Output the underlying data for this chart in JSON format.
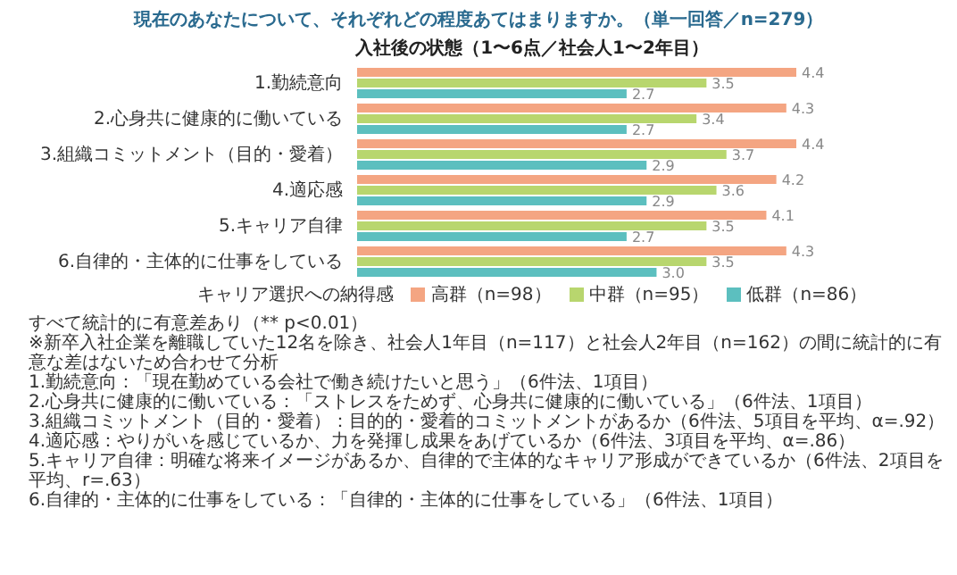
{
  "chart_data": {
    "type": "bar",
    "orientation": "horizontal",
    "title": "現在のあなたについて、それぞれどの程度あてはまりますか。（単一回答／n=279）",
    "subtitle": "入社後の状態（1〜6点／社会人1〜2年目）",
    "categories": [
      "1.勤続意向",
      "2.心身共に健康的に働いている",
      "3.組織コミットメント（目的・愛着）",
      "4.適応感",
      "5.キャリア自律",
      "6.自律的・主体的に仕事をしている"
    ],
    "series": [
      {
        "name": "高群（n=98）",
        "color": "#f4a582",
        "values": [
          4.4,
          4.3,
          4.4,
          4.2,
          4.1,
          4.3
        ],
        "value_labels": [
          "4.4",
          "4.3",
          "4.4",
          "4.2",
          "4.1",
          "4.3"
        ]
      },
      {
        "name": "中群（n=95）",
        "color": "#b8d66e",
        "values": [
          3.5,
          3.4,
          3.7,
          3.6,
          3.5,
          3.5
        ],
        "value_labels": [
          "3.5",
          "3.4",
          "3.7",
          "3.6",
          "3.5",
          "3.5"
        ]
      },
      {
        "name": "低群（n=86）",
        "color": "#5cbfbf",
        "values": [
          2.7,
          2.7,
          2.9,
          2.9,
          2.7,
          3.0
        ],
        "value_labels": [
          "2.7",
          "2.7",
          "2.9",
          "2.9",
          "2.7",
          "3.0"
        ]
      }
    ],
    "legend": "bottom",
    "legend_title": "キャリア選択への納得感",
    "grid": false,
    "annotations": [
      "すべて統計的に有意差あり（** p<0.01）",
      "※新卒入社企業を離職していた12名を除き、社会人1年目（n=117）と社会人2年目（n=162）の間に統計的に有意な差はないため合わせて分析",
      "1.勤続意向：「現在勤めている会社で働き続けたいと思う」（6件法、1項目）",
      "2.心身共に健康的に働いている：「ストレスをためず、心身共に健康的に働いている」（6件法、1項目）",
      "3.組織コミットメント（目的・愛着）：目的的・愛着的コミットメントがあるか（6件法、5項目を平均、α=.92）",
      "4.適応感：やりがいを感じているか、力を発揮し成果をあげているか（6件法、3項目を平均、α=.86）",
      "5.キャリア自律：明確な将来イメージがあるか、自律的で主体的なキャリア形成ができているか（6件法、2項目を平均、r=.63）",
      "6.自律的・主体的に仕事をしている：「自律的・主体的に仕事をしている」（6件法、1項目）"
    ]
  }
}
